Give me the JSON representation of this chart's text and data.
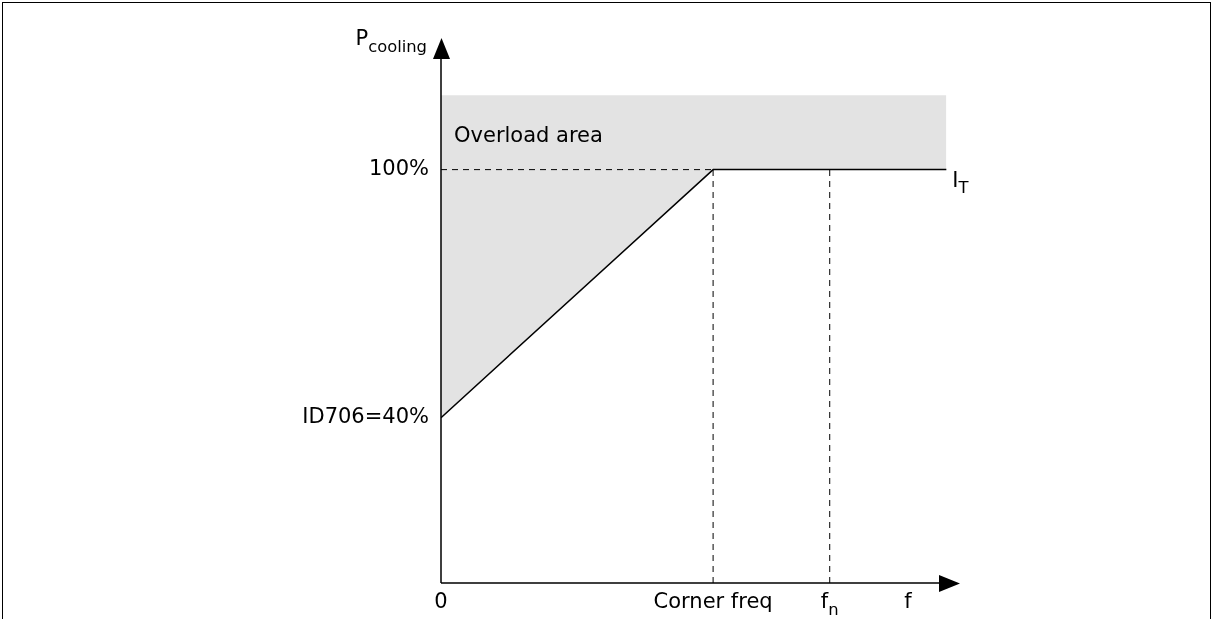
{
  "chart_data": {
    "type": "line",
    "xlabel": "f",
    "ylabel": "P$_{cooling}$",
    "categories": [
      "0",
      null,
      null,
      null,
      null,
      null,
      null,
      "Corner freq",
      null,
      null,
      "f$_{n}$",
      null,
      null,
      null
    ],
    "series": [
      {
        "name": "I$_{T}$",
        "color": "#000000",
        "values": [
          40,
          null,
          null,
          null,
          null,
          null,
          null,
          100,
          null,
          null,
          null,
          null,
          null,
          100
        ],
        "lower": [
          40,
          null,
          null,
          null,
          null,
          null,
          null,
          100,
          null,
          null,
          null,
          null,
          null,
          100
        ],
        "upper": [
          118,
          null,
          null,
          null,
          null,
          null,
          null,
          118,
          null,
          null,
          null,
          null,
          null,
          118
        ]
      }
    ],
    "ylim": [
      0,
      127
    ],
    "yticks": [
      {
        "value": 40,
        "label": "40%"
      },
      {
        "value": 100,
        "label": "100%"
      }
    ],
    "ref_lines": [
      {
        "axis": "y",
        "value": 100,
        "line_style": "dashed"
      },
      {
        "axis": "x",
        "value": "Corner freq",
        "line_style": "dashed"
      },
      {
        "axis": "x",
        "value": "f$_{n}$",
        "line_style": "dashed"
      }
    ],
    "annotations": [
      "Overload area",
      "ID706="
    ],
    "legend": false,
    "marker": "none"
  }
}
